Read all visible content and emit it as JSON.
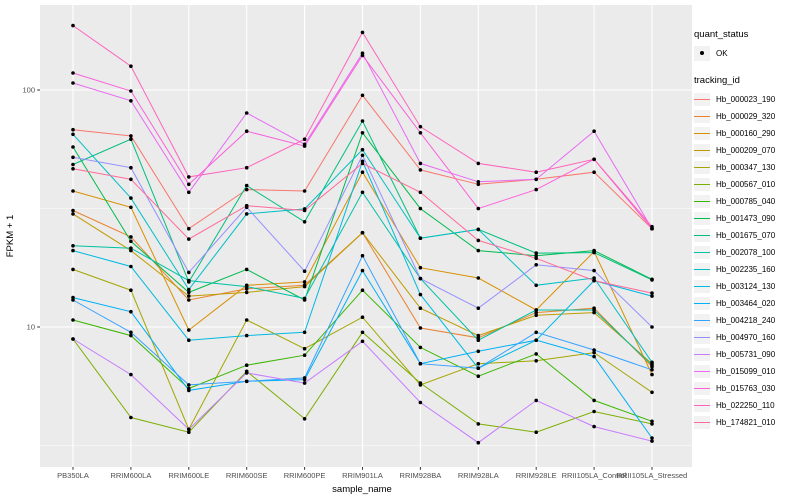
{
  "chart_data": {
    "type": "line",
    "title": "",
    "xlabel": "sample_name",
    "ylabel": "FPKM + 1",
    "x_categories": [
      "PB350LA",
      "RRIM600LA",
      "RRIM600LE",
      "RRIM600SE",
      "RRIM600PE",
      "RRIM901LA",
      "RRIM928BA",
      "RRIM928LA",
      "RRIM928LE",
      "RRII105LA_Control",
      "RRII105LA_Stressed"
    ],
    "y_scale": "log10",
    "y_major_ticks": [
      100,
      10
    ],
    "y_major_labels": [
      "100",
      "10"
    ],
    "y_minor_ticks": [
      31.62,
      3.162
    ],
    "ylim": [
      2.5,
      230
    ],
    "grid": true,
    "legend_position": "right",
    "point_shape": "filled-circle",
    "point_color": "#000000",
    "series": [
      {
        "name": "Hb_000023_190",
        "color": "#F8766D",
        "values": [
          68,
          64,
          26,
          38,
          37.5,
          95,
          46,
          40,
          42,
          45,
          26
        ]
      },
      {
        "name": "Hb_000029_320",
        "color": "#EA8331",
        "values": [
          31,
          24,
          13,
          14.5,
          15,
          25,
          9.9,
          9.0,
          11.5,
          12,
          6.8
        ]
      },
      {
        "name": "Hb_000160_290",
        "color": "#D89000",
        "values": [
          37.5,
          32,
          9.7,
          15,
          15.5,
          45,
          17.8,
          16.1,
          11.8,
          20.8,
          6.3
        ]
      },
      {
        "name": "Hb_000209_070",
        "color": "#C09B00",
        "values": [
          30,
          21,
          13.5,
          14,
          14.8,
          25,
          12,
          9.2,
          11.2,
          11.5,
          7.0
        ]
      },
      {
        "name": "Hb_000347_130",
        "color": "#A3A500",
        "values": [
          17.5,
          14.3,
          3.7,
          10.7,
          8.1,
          11,
          5.7,
          7.0,
          7.2,
          7.8,
          5.3
        ]
      },
      {
        "name": "Hb_000567_010",
        "color": "#7CAE00",
        "values": [
          8.9,
          4.15,
          3.6,
          6.5,
          4.1,
          9.5,
          5.8,
          3.9,
          3.6,
          4.4,
          3.9
        ]
      },
      {
        "name": "Hb_000785_040",
        "color": "#39B600",
        "values": [
          10.7,
          9.2,
          5.5,
          6.9,
          7.6,
          14.3,
          8.2,
          6.2,
          7.7,
          4.9,
          4.0
        ]
      },
      {
        "name": "Hb_001473_090",
        "color": "#00BB4E",
        "values": [
          57.5,
          23,
          14,
          17.5,
          13,
          66,
          31.6,
          21,
          20,
          21,
          15.9
        ]
      },
      {
        "name": "Hb_001675_070",
        "color": "#00BF7D",
        "values": [
          48.5,
          62,
          15.5,
          39.5,
          27.8,
          74,
          23.7,
          25.8,
          20.5,
          20.6,
          15.8
        ]
      },
      {
        "name": "Hb_002078_100",
        "color": "#00C1A3",
        "values": [
          22,
          21.5,
          15.7,
          14.8,
          13.2,
          37,
          16,
          8.8,
          11.8,
          11.8,
          6.9
        ]
      },
      {
        "name": "Hb_002235_160",
        "color": "#00BFC4",
        "values": [
          65,
          35,
          14.4,
          30,
          31.5,
          56,
          23.7,
          25.8,
          15,
          16.1,
          7.1
        ]
      },
      {
        "name": "Hb_003124_130",
        "color": "#00BAE0",
        "values": [
          21,
          18,
          8.8,
          9.2,
          9.5,
          50,
          13.7,
          6.7,
          8.8,
          15.7,
          13.5
        ]
      },
      {
        "name": "Hb_003464_020",
        "color": "#00B0F6",
        "values": [
          13.3,
          11.6,
          5.4,
          5.9,
          6.0,
          17.3,
          7.0,
          7.9,
          8.8,
          7.5,
          3.4
        ]
      },
      {
        "name": "Hb_004218_240",
        "color": "#35A2FF",
        "values": [
          13.0,
          9.5,
          5.7,
          5.9,
          6.1,
          20,
          7.0,
          6.7,
          9.5,
          8.0,
          6.6
        ]
      },
      {
        "name": "Hb_004970_160",
        "color": "#9590FF",
        "values": [
          52,
          47,
          17,
          32,
          17.2,
          53,
          16,
          12,
          18.3,
          17.3,
          10
        ]
      },
      {
        "name": "Hb_005731_090",
        "color": "#C77CFF",
        "values": [
          8.9,
          6.3,
          3.7,
          6.4,
          5.8,
          8.7,
          4.8,
          3.25,
          4.9,
          3.8,
          3.3
        ]
      },
      {
        "name": "Hb_015099_010",
        "color": "#E76BF3",
        "values": [
          107,
          90,
          37,
          80,
          59,
          143,
          49,
          41,
          42,
          67,
          26
        ]
      },
      {
        "name": "Hb_015763_030",
        "color": "#FA62DB",
        "values": [
          118,
          99,
          40,
          67,
          58,
          140,
          66,
          31.6,
          38,
          51,
          26
        ]
      },
      {
        "name": "Hb_022250_110",
        "color": "#FF62BC",
        "values": [
          187,
          126,
          43,
          47,
          62,
          175,
          70,
          49,
          45,
          51,
          26.5
        ]
      },
      {
        "name": "Hb_174821_010",
        "color": "#FF6A98",
        "values": [
          46.5,
          42,
          23.5,
          32.5,
          31,
          49,
          37,
          23.2,
          19.5,
          15.7,
          13.9
        ]
      }
    ]
  },
  "legend": {
    "quant_status": {
      "title": "quant_status",
      "items": [
        {
          "label": "OK",
          "symbol": "point"
        }
      ]
    },
    "tracking_id": {
      "title": "tracking_id"
    }
  },
  "theme": {
    "panel_bg": "#EBEBEB",
    "grid_color": "#FFFFFF",
    "axis_text_color": "#4D4D4D",
    "axis_title_color": "#000000",
    "tick_color": "#333333",
    "legend_key_bg": "#F2F2F2",
    "background": "#FFFFFF"
  }
}
